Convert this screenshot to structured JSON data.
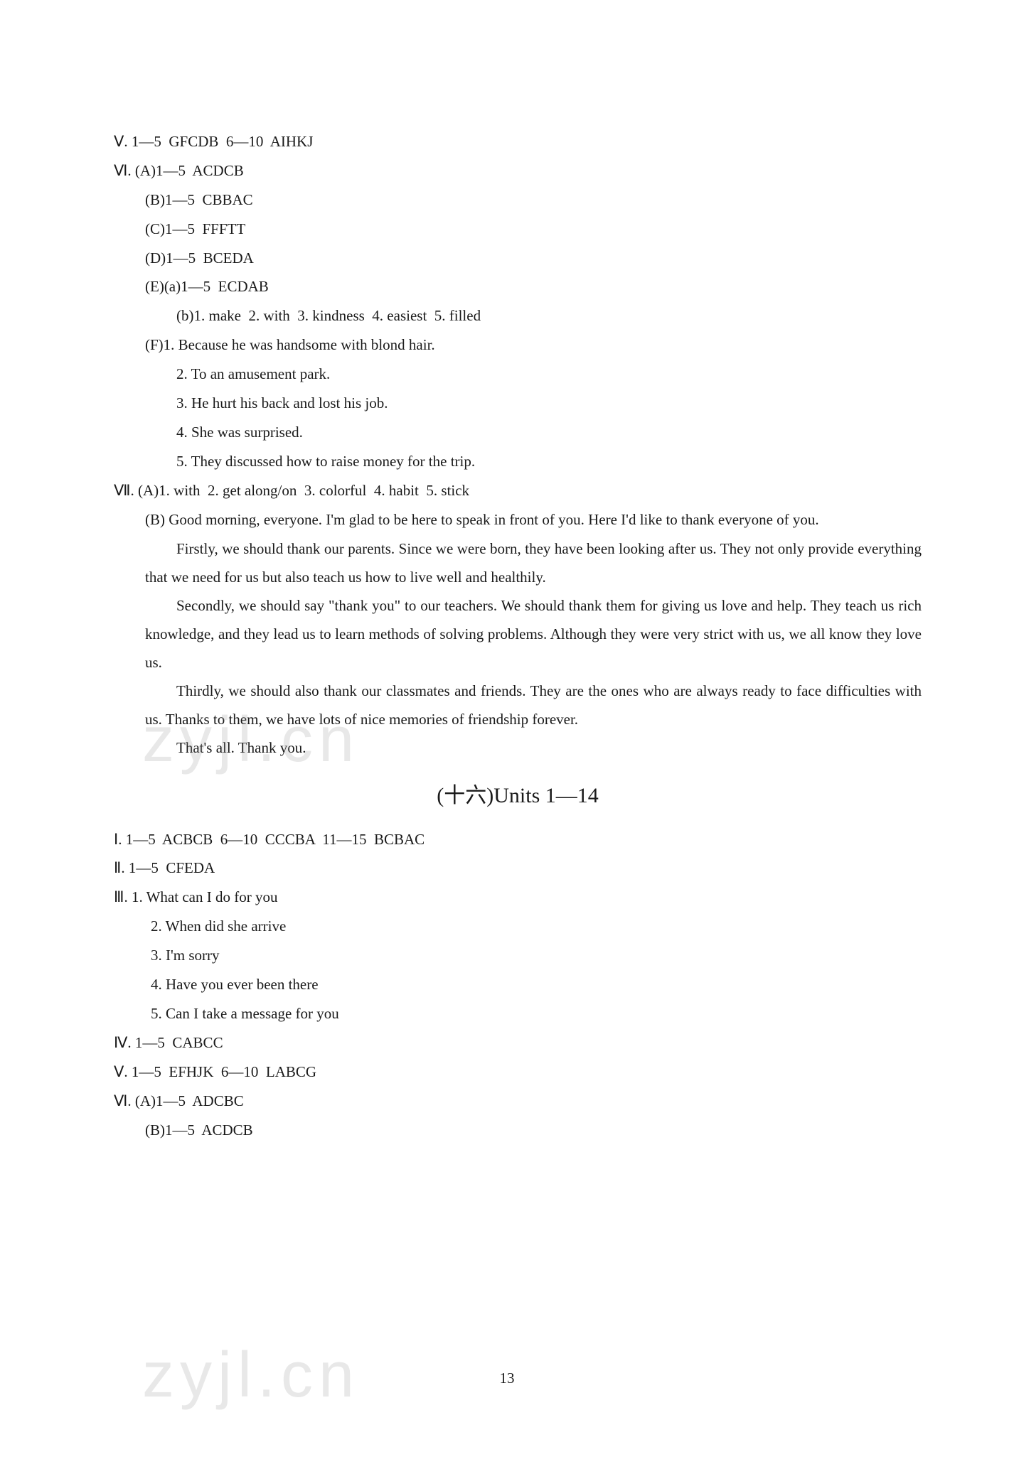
{
  "text_color": "#1a1a1a",
  "background_color": "#ffffff",
  "watermark_color": "rgba(150,150,150,0.22)",
  "font_size_body": 21,
  "font_size_title": 30,
  "page_number": "13",
  "watermark_text": "zyjl.cn",
  "lines": {
    "l01": "Ⅴ. 1—5  GFCDB  6—10  AIHKJ",
    "l02": "Ⅵ. (A)1—5  ACDCB",
    "l03": "(B)1—5  CBBAC",
    "l04": "(C)1—5  FFFTT",
    "l05": "(D)1—5  BCEDA",
    "l06": "(E)(a)1—5  ECDAB",
    "l07": "(b)1. make  2. with  3. kindness  4. easiest  5. filled",
    "l08": "(F)1. Because he was handsome with blond hair.",
    "l09": "2. To an amusement park.",
    "l10": "3. He hurt his back and lost his job.",
    "l11": "4. She was surprised.",
    "l12": "5. They discussed how to raise money for the trip.",
    "l13": "Ⅶ. (A)1. with  2. get along/on  3. colorful  4. habit  5. stick",
    "l14": "(B)   Good morning, everyone. I'm glad to be here to speak in front of you. Here I'd like to thank everyone of you.",
    "l15": "Firstly, we should thank our parents. Since we were born, they have been looking after us. They not only provide everything that we need for us but also teach us how to live well and healthily.",
    "l16": "Secondly, we should say \"thank you\" to our teachers. We should thank them for giving us love and help. They teach us rich knowledge, and they lead us to learn methods of solving problems. Although they were very strict with us, we all know they love us.",
    "l17": "Thirdly, we should also thank our classmates and friends. They are the ones who are always ready to face difficulties with us. Thanks to them, we have lots of nice memories of friendship forever.",
    "l18": "That's all. Thank you.",
    "title": "(十六)Units 1—14",
    "l19": "Ⅰ. 1—5  ACBCB  6—10  CCCBA  11—15  BCBAC",
    "l20": "Ⅱ. 1—5  CFEDA",
    "l21": "Ⅲ. 1. What can I do for you",
    "l22": "2. When did she arrive",
    "l23": "3. I'm sorry",
    "l24": "4. Have you ever been there",
    "l25": "5. Can I take a message for you",
    "l26": "Ⅳ. 1—5  CABCC",
    "l27": "Ⅴ. 1—5  EFHJK  6—10  LABCG",
    "l28": "Ⅵ. (A)1—5  ADCBC",
    "l29": "(B)1—5  ACDCB"
  }
}
